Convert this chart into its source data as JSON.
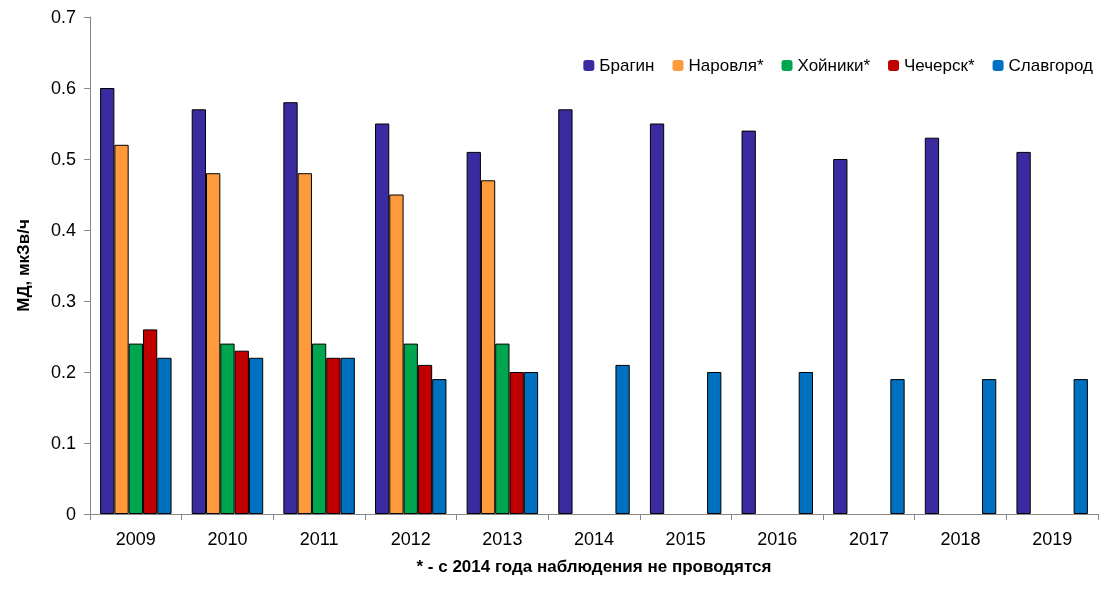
{
  "chart_data": {
    "type": "bar",
    "xlabel": "* - с 2014 года наблюдения не проводятся",
    "ylabel": "МД, мкЗв/ч",
    "categories": [
      "2009",
      "2010",
      "2011",
      "2012",
      "2013",
      "2014",
      "2015",
      "2016",
      "2017",
      "2018",
      "2019"
    ],
    "series": [
      {
        "name": "Брагин",
        "color": "#3a2ca0",
        "values": [
          0.6,
          0.57,
          0.58,
          0.55,
          0.51,
          0.57,
          0.55,
          0.54,
          0.5,
          0.53,
          0.51
        ]
      },
      {
        "name": "Наровля*",
        "color": "#ff9a3c",
        "values": [
          0.52,
          0.48,
          0.48,
          0.45,
          0.47,
          null,
          null,
          null,
          null,
          null,
          null
        ]
      },
      {
        "name": "Хойники*",
        "color": "#00a64f",
        "values": [
          0.24,
          0.24,
          0.24,
          0.24,
          0.24,
          null,
          null,
          null,
          null,
          null,
          null
        ]
      },
      {
        "name": "Чечерск*",
        "color": "#c00000",
        "values": [
          0.26,
          0.23,
          0.22,
          0.21,
          0.2,
          null,
          null,
          null,
          null,
          null,
          null
        ]
      },
      {
        "name": "Славгород",
        "color": "#0070c0",
        "values": [
          0.22,
          0.22,
          0.22,
          0.19,
          0.2,
          0.21,
          0.2,
          0.2,
          0.19,
          0.19,
          0.19
        ]
      }
    ],
    "ylim": [
      0,
      0.7
    ],
    "yticks": [
      0,
      0.1,
      0.2,
      0.3,
      0.4,
      0.5,
      0.6,
      0.7
    ],
    "grid": false,
    "legend": "top right"
  }
}
